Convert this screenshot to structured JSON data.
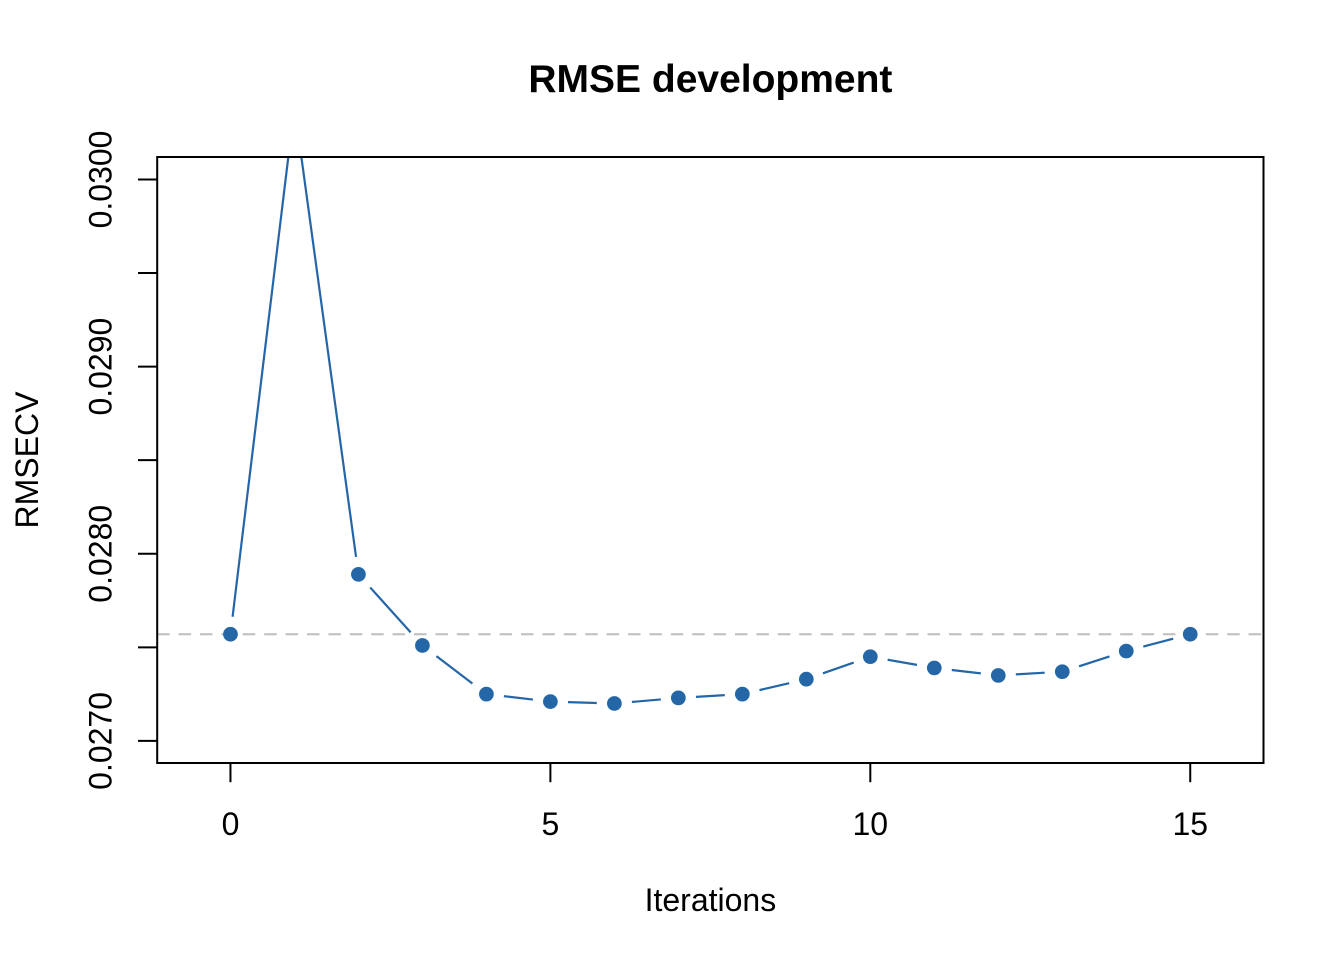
{
  "figure": {
    "background": "#ffffff"
  },
  "chart_data": {
    "type": "line",
    "title": "RMSE development",
    "xlabel": "Iterations",
    "ylabel": "RMSECV",
    "x": [
      0,
      1,
      2,
      3,
      4,
      5,
      6,
      7,
      8,
      9,
      10,
      11,
      12,
      13,
      14,
      15
    ],
    "values": [
      0.02757,
      0.03039,
      0.02789,
      0.02751,
      0.02725,
      0.02721,
      0.0272,
      0.02723,
      0.02725,
      0.02733,
      0.02745,
      0.02739,
      0.02735,
      0.02737,
      0.02748,
      0.02757
    ],
    "reference_line": {
      "y": 0.02757,
      "style": "dashed"
    },
    "xlim": [
      -1.145,
      16.145
    ],
    "ylim": [
      0.026882,
      0.03012
    ],
    "xticks": [
      0,
      5,
      10,
      15
    ],
    "xtick_labels": [
      "0",
      "5",
      "10",
      "15"
    ],
    "yticks": [
      0.027,
      0.0275,
      0.028,
      0.0285,
      0.029,
      0.0295,
      0.03
    ],
    "ytick_labels": [
      "0.0270",
      "",
      "0.0280",
      "",
      "0.0290",
      "",
      "0.0300"
    ],
    "marker": "filled-circle",
    "line_style": "segments-with-point-gaps",
    "grid": false,
    "legend": null,
    "colors": {
      "series": "#2566A7",
      "reference": "#BEBEBE",
      "axis": "#000000",
      "text": "#000000",
      "background": "#ffffff"
    }
  }
}
